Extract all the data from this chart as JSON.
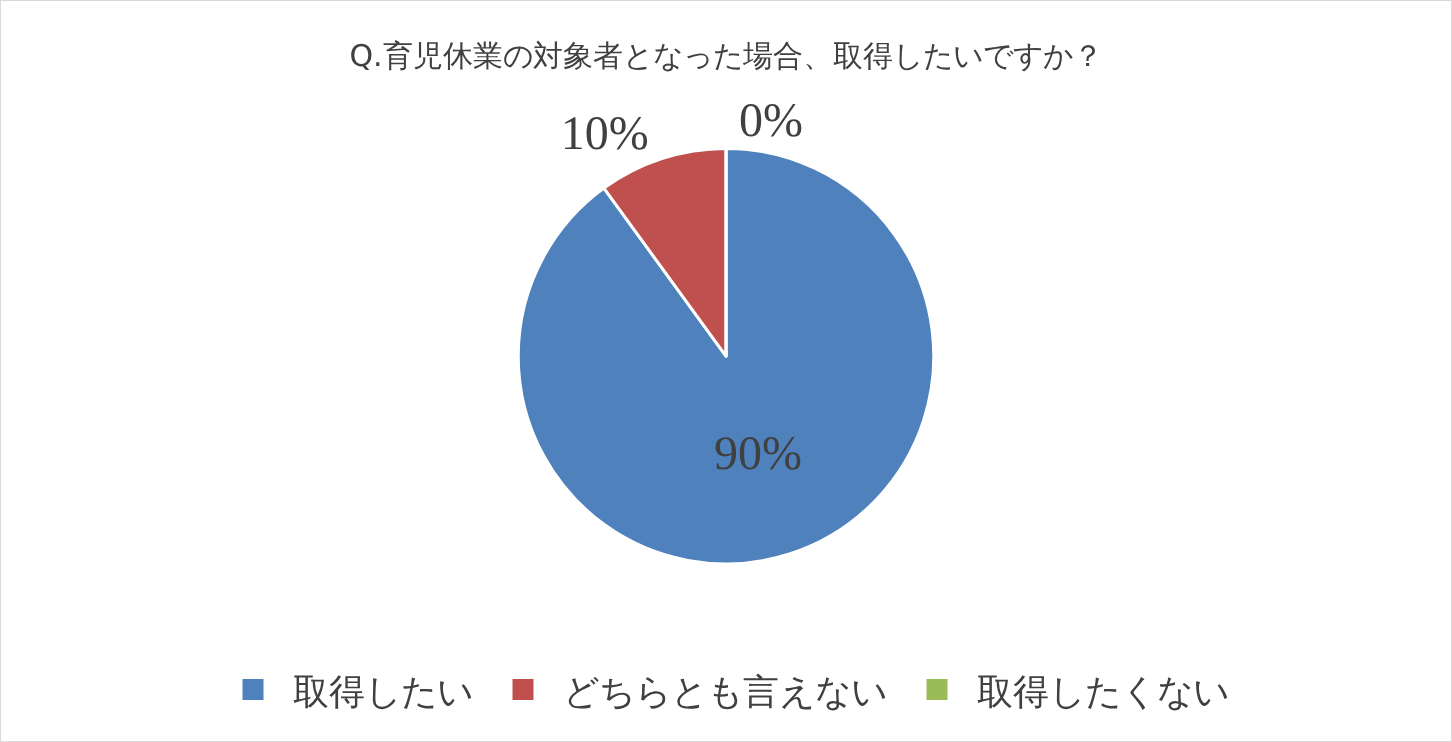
{
  "chart_data": {
    "type": "pie",
    "title": "Q.育児休業の対象者となった場合、取得したいですか？",
    "categories": [
      "取得したい",
      "どちらとも言えない",
      "取得したくない"
    ],
    "values": [
      90,
      10,
      0
    ],
    "colors": [
      "#4f81bd",
      "#c0504d",
      "#9bbb59"
    ],
    "value_labels": [
      "90%",
      "10%",
      "0%"
    ],
    "legend": "bottom"
  }
}
